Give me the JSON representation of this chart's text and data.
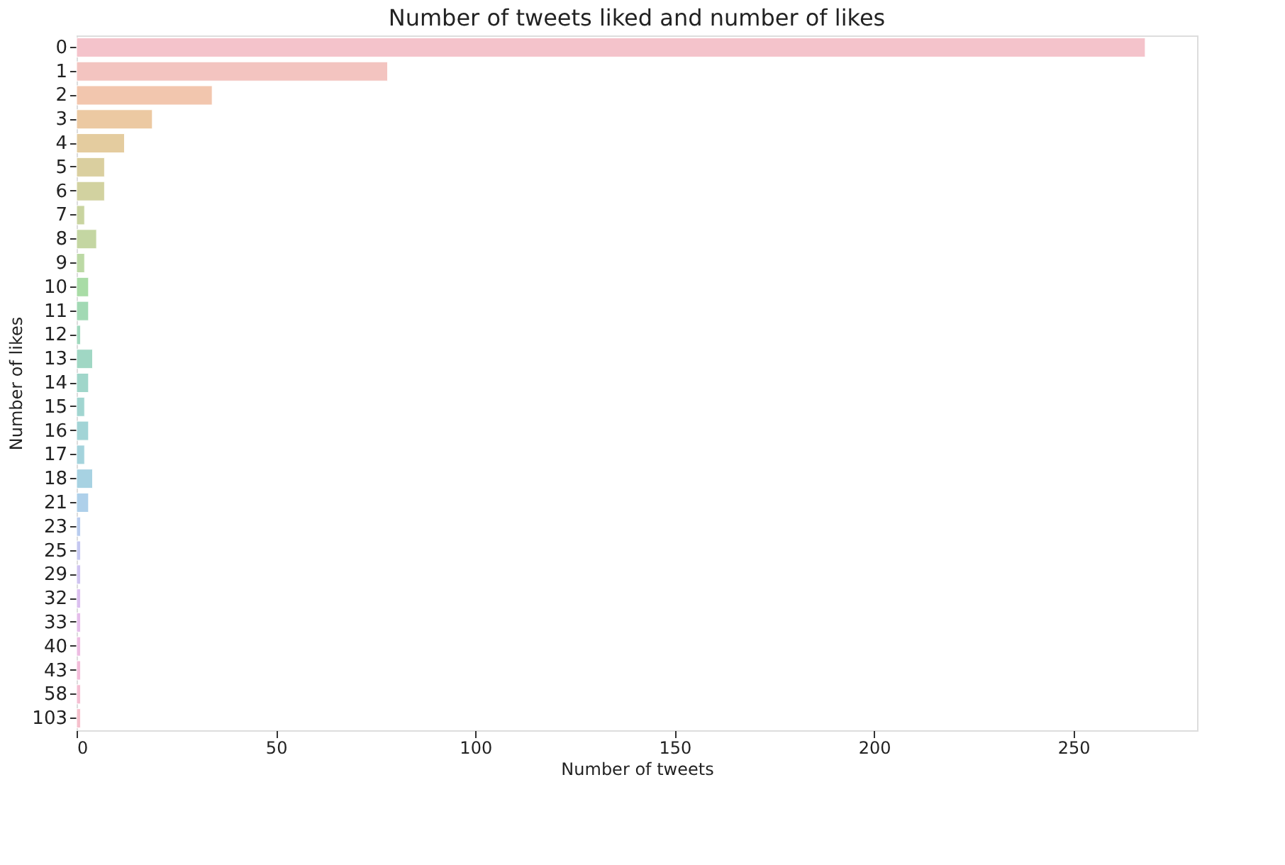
{
  "chart_data": {
    "type": "bar",
    "orientation": "horizontal",
    "title": "Number of tweets liked and number of likes",
    "xlabel": "Number of tweets",
    "ylabel": "Number of likes",
    "categories": [
      "0",
      "1",
      "2",
      "3",
      "4",
      "5",
      "6",
      "7",
      "8",
      "9",
      "10",
      "11",
      "12",
      "13",
      "14",
      "15",
      "16",
      "17",
      "18",
      "21",
      "23",
      "25",
      "29",
      "32",
      "33",
      "40",
      "43",
      "58",
      "103"
    ],
    "values": [
      268,
      78,
      34,
      19,
      12,
      7,
      7,
      2,
      5,
      2,
      3,
      3,
      1,
      4,
      3,
      2,
      3,
      2,
      4,
      3,
      1,
      1,
      1,
      1,
      1,
      1,
      1,
      1,
      1
    ],
    "colors": [
      "#f4c3cb",
      "#f3c4c0",
      "#f2c6ae",
      "#ecc9a2",
      "#e4cc9f",
      "#dacf9f",
      "#d2d2a0",
      "#c9d4a0",
      "#c4d6a2",
      "#bcd9a5",
      "#a9dca6",
      "#a2d9b4",
      "#a0d8bd",
      "#a0d7c4",
      "#a0d6ca",
      "#a1d5d0",
      "#a2d4d6",
      "#a4d3dc",
      "#a7d2e2",
      "#aed0ea",
      "#b8ccee",
      "#c4c7f0",
      "#cfc3f0",
      "#dbbfef",
      "#e5bdea",
      "#edbce2",
      "#f2bcd9",
      "#f4bed2",
      "#f5c0cc"
    ],
    "xlim": [
      0,
      281
    ],
    "xticks": [
      0,
      50,
      100,
      150,
      200,
      250
    ],
    "grid": false
  }
}
